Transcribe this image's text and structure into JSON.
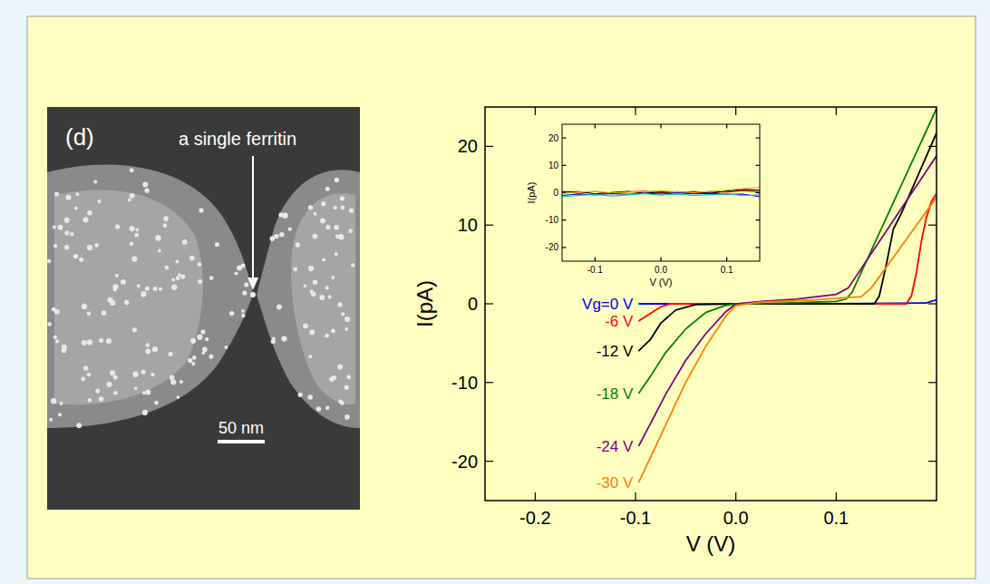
{
  "image": {
    "panel_label": "(d)",
    "annotation": "a single ferritin",
    "scale_bar_label": "50 nm"
  },
  "chart_data": [
    {
      "type": "line",
      "x_label": "V (V)",
      "y_label": "I(pA)",
      "xlim": [
        -0.25,
        0.2
      ],
      "ylim": [
        -25,
        25
      ],
      "xticks": [
        -0.2,
        -0.1,
        {
          "value": 0,
          "label": "0.0"
        },
        0.1
      ],
      "yticks": [
        -20,
        -10,
        0,
        10,
        20
      ],
      "series": [
        {
          "name": "Vg=0 V",
          "color": "#0000ff",
          "x": [
            -0.097,
            0.0,
            0.1,
            0.19,
            0.2
          ],
          "values": [
            0,
            0,
            0,
            0.1,
            0.5
          ]
        },
        {
          "name": "-6 V",
          "color": "#ff0000",
          "x": [
            -0.097,
            -0.085,
            -0.075,
            -0.065,
            0.0,
            0.1,
            0.17,
            0.175,
            0.18,
            0.185,
            0.19,
            0.195,
            0.2
          ],
          "values": [
            -2.2,
            -1.2,
            -0.4,
            0,
            0,
            0,
            0,
            1,
            4,
            8,
            11,
            13,
            14
          ]
        },
        {
          "name": "-12 V",
          "color": "#000000",
          "x": [
            -0.097,
            -0.085,
            -0.075,
            -0.06,
            -0.04,
            0.0,
            0.1,
            0.138,
            0.143,
            0.15,
            0.157,
            0.165,
            0.2
          ],
          "values": [
            -6,
            -4.5,
            -2.5,
            -0.8,
            -0.1,
            0,
            0,
            0,
            1,
            5,
            9.5,
            11.5,
            21.7
          ]
        },
        {
          "name": "-18 V",
          "color": "#008000",
          "x": [
            -0.097,
            -0.085,
            -0.07,
            -0.05,
            -0.03,
            -0.01,
            0.0,
            0.05,
            0.1,
            0.11,
            0.116,
            0.2
          ],
          "values": [
            -11.4,
            -9.2,
            -6.2,
            -3.2,
            -1.1,
            -0.2,
            0,
            0.1,
            0.3,
            0.6,
            1.5,
            24.8
          ]
        },
        {
          "name": "-24 V",
          "color": "#800080",
          "x": [
            -0.097,
            -0.085,
            -0.07,
            -0.05,
            -0.03,
            -0.01,
            0.0,
            0.025,
            0.06,
            0.1,
            0.112,
            0.2
          ],
          "values": [
            -18.1,
            -15.2,
            -11.5,
            -7.2,
            -3.8,
            -1.0,
            0,
            0.3,
            0.6,
            1.2,
            2,
            18.8
          ]
        },
        {
          "name": "-30 V",
          "color": "#ff8000",
          "x": [
            -0.097,
            -0.085,
            -0.07,
            -0.05,
            -0.03,
            -0.01,
            0.0,
            0.025,
            0.08,
            0.125,
            0.135,
            0.2
          ],
          "values": [
            -22.7,
            -19.5,
            -15.4,
            -10,
            -5.4,
            -1.6,
            -0.2,
            0.2,
            0.5,
            0.9,
            2,
            13.5
          ]
        }
      ]
    },
    {
      "type": "line",
      "x_label": "V (V)",
      "y_label": "I(pA)",
      "xlim": [
        -0.15,
        0.15
      ],
      "ylim": [
        -25,
        25
      ],
      "xticks": [
        -0.1,
        {
          "value": 0,
          "label": "0.0"
        },
        0.1
      ],
      "yticks": [
        -20,
        -10,
        0,
        10,
        20
      ],
      "x": [
        -0.15,
        -0.125,
        -0.1,
        -0.075,
        -0.05,
        -0.025,
        0,
        0.025,
        0.05,
        0.075,
        0.1,
        0.125,
        0.15
      ],
      "series": [
        {
          "color": "#ff0000",
          "values": [
            0.5,
            -0.3,
            0.4,
            -0.2,
            0.3,
            0.6,
            -0.1,
            0.4,
            -0.3,
            0.5,
            0.2,
            0.8,
            0.3
          ]
        },
        {
          "color": "#000000",
          "values": [
            0.2,
            0.4,
            -0.4,
            0.1,
            0.5,
            -0.2,
            0.3,
            0.1,
            0.4,
            -0.2,
            0.6,
            1.2,
            0.9
          ]
        },
        {
          "color": "#c8c800",
          "values": [
            -0.3,
            0.2,
            0.5,
            -0.1,
            0.2,
            0.4,
            0.7,
            0.3,
            0.1,
            0.5,
            1.0,
            1.5,
            2.0
          ]
        },
        {
          "color": "#0000ff",
          "values": [
            -1.0,
            -0.5,
            -0.8,
            -0.3,
            -0.6,
            -0.2,
            -0.5,
            -0.1,
            -0.4,
            -0.2,
            -0.6,
            -0.5,
            -1.5
          ]
        },
        {
          "color": "#00c0c0",
          "values": [
            -1.5,
            -1.0,
            -0.6,
            -1.2,
            -0.8,
            -0.3,
            -0.9,
            -0.5,
            -1.0,
            -0.7,
            -0.4,
            -1.1,
            -0.8
          ]
        }
      ]
    }
  ]
}
